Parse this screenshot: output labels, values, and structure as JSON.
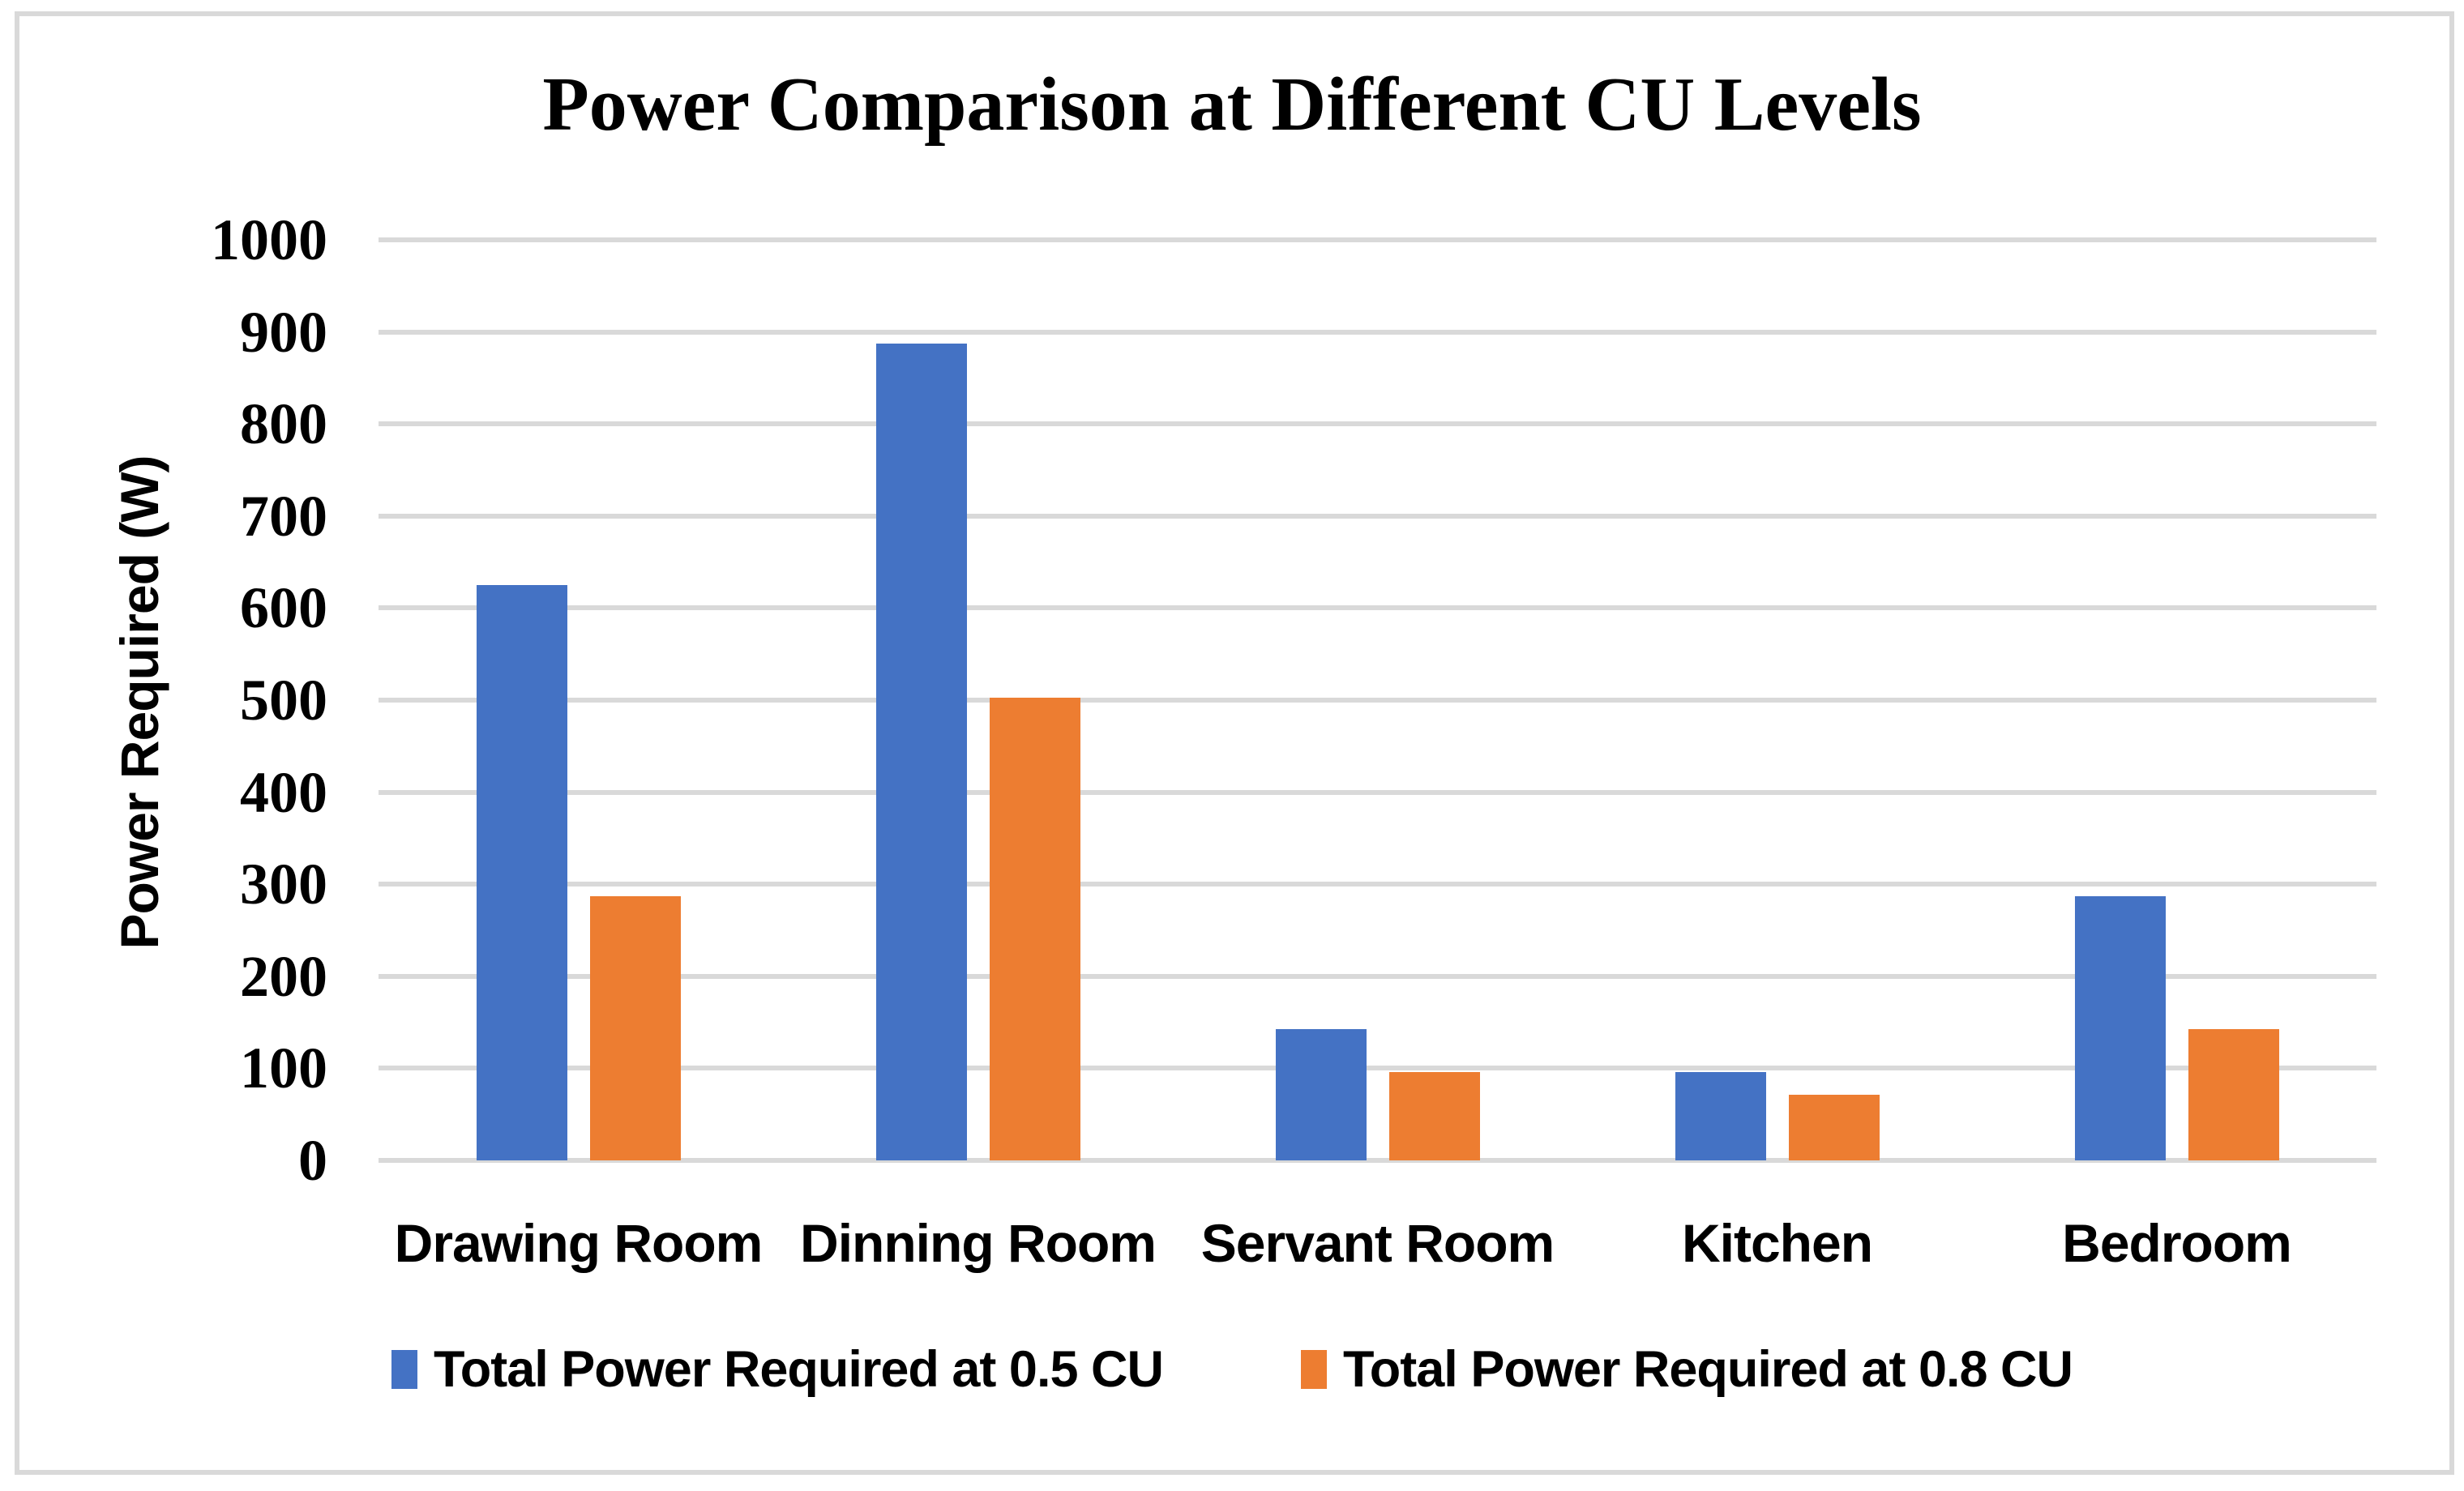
{
  "chart_data": {
    "type": "bar",
    "title": "Power Comparison at Different CU Levels",
    "categories": [
      "Drawing Room",
      "Dinning Room",
      "Servant Room",
      "Kitchen",
      "Bedroom"
    ],
    "series": [
      {
        "name": "Total Power Required at 0.5 CU",
        "color": "#4472C4",
        "values": [
          625,
          887,
          143,
          96,
          287
        ]
      },
      {
        "name": "Total Power Required at 0.8 CU",
        "color": "#ED7D31",
        "values": [
          287,
          503,
          96,
          71,
          143
        ]
      }
    ],
    "xlabel": "",
    "ylabel": "Power Required (W)",
    "ylim": [
      0,
      1000
    ],
    "yticks": [
      0,
      100,
      200,
      300,
      400,
      500,
      600,
      700,
      800,
      900,
      1000
    ],
    "grid": true,
    "gridline_color": "#D9D9D9",
    "legend_position": "bottom"
  }
}
